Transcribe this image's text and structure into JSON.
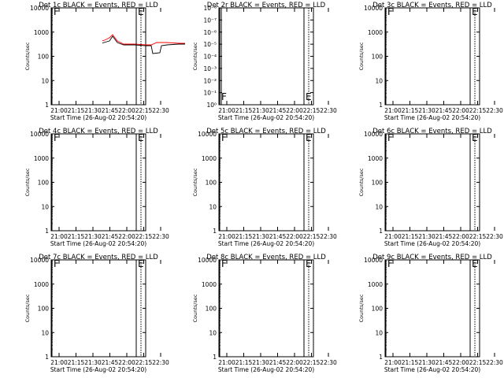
{
  "chart_data": [
    {
      "type": "line",
      "title": "Det 1c BLACK = Events, RED = LLD",
      "xlabel": "Start Time (26-Aug-02 20:54:20)",
      "ylabel": "Counts/sec",
      "yscale": "log",
      "ylim": [
        1,
        10000
      ],
      "xticks": [
        "21:00",
        "21:15",
        "21:30",
        "21:45",
        "22:00",
        "22:15",
        "22:30"
      ],
      "markers": [
        {
          "time": "21:05",
          "label": "F",
          "style": "solid"
        },
        {
          "time": "22:12",
          "label": "E",
          "style": "solid"
        },
        {
          "time": "22:15",
          "label": "",
          "style": "dotted"
        }
      ],
      "yticks": [
        "1",
        "10",
        "100",
        "1000",
        "10000"
      ],
      "variant": "a",
      "series": [
        {
          "name": "Events",
          "color": "#000000"
        },
        {
          "name": "LLD",
          "color": "#ff0000"
        }
      ]
    },
    {
      "type": "line",
      "title": "Det 2r BLACK = Events, RED = LLD",
      "xlabel": "Start Time (26-Aug-02 20:54:20)",
      "ylabel": "Counts/sec",
      "yscale": "log",
      "ylim": [
        1,
        1e-08
      ],
      "xticks": [
        "21:00",
        "21:15",
        "21:30",
        "21:45",
        "22:00",
        "22:15",
        "22:30"
      ],
      "markers": [
        {
          "time": "21:05",
          "label": "F",
          "style": "solid"
        },
        {
          "time": "22:12",
          "label": "E",
          "style": "solid"
        },
        {
          "time": "22:15",
          "label": "",
          "style": "dotted"
        }
      ],
      "yticks": [
        "10⁰",
        "10⁻¹",
        "10⁻²",
        "10⁻³",
        "10⁻⁴",
        "10⁻⁵",
        "10⁻⁶",
        "10⁻⁷",
        "10⁻⁸"
      ],
      "variant": "empty",
      "series": []
    },
    {
      "type": "line",
      "title": "Det 3c BLACK = Events, RED = LLD",
      "xlabel": "Start Time (26-Aug-02 20:54:20)",
      "ylabel": "Counts/sec",
      "yscale": "log",
      "ylim": [
        1,
        10000
      ],
      "xticks": [
        "21:00",
        "21:15",
        "21:30",
        "21:45",
        "22:00",
        "22:15",
        "22:30"
      ],
      "markers": [
        {
          "time": "21:05",
          "label": "F",
          "style": "solid"
        },
        {
          "time": "22:12",
          "label": "E",
          "style": "solid"
        },
        {
          "time": "22:15",
          "label": "",
          "style": "dotted"
        }
      ],
      "yticks": [
        "1",
        "10",
        "100",
        "1000",
        "10000"
      ],
      "variant": "a",
      "series": [
        {
          "name": "Events",
          "color": "#000000"
        },
        {
          "name": "LLD",
          "color": "#ff0000"
        }
      ]
    },
    {
      "type": "line",
      "title": "Det 4c BLACK = Events, RED = LLD",
      "xlabel": "Start Time (26-Aug-02 20:54:20)",
      "ylabel": "Counts/sec",
      "yscale": "log",
      "ylim": [
        1,
        10000
      ],
      "xticks": [
        "21:00",
        "21:15",
        "21:30",
        "21:45",
        "22:00",
        "22:15",
        "22:30"
      ],
      "markers": [
        {
          "time": "21:05",
          "label": "F",
          "style": "solid"
        },
        {
          "time": "22:12",
          "label": "E",
          "style": "solid"
        },
        {
          "time": "22:15",
          "label": "",
          "style": "dotted"
        }
      ],
      "yticks": [
        "1",
        "10",
        "100",
        "1000",
        "10000"
      ],
      "variant": "a",
      "series": [
        {
          "name": "Events",
          "color": "#000000"
        },
        {
          "name": "LLD",
          "color": "#ff0000"
        }
      ]
    },
    {
      "type": "line",
      "title": "Det 5c BLACK = Events, RED = LLD",
      "xlabel": "Start Time (26-Aug-02 20:54:20)",
      "ylabel": "Counts/sec",
      "yscale": "log",
      "ylim": [
        1,
        10000
      ],
      "xticks": [
        "21:00",
        "21:15",
        "21:30",
        "21:45",
        "22:00",
        "22:15",
        "22:30"
      ],
      "markers": [
        {
          "time": "21:05",
          "label": "F",
          "style": "solid"
        },
        {
          "time": "22:12",
          "label": "E",
          "style": "solid"
        },
        {
          "time": "22:15",
          "label": "",
          "style": "dotted"
        }
      ],
      "yticks": [
        "1",
        "10",
        "100",
        "1000",
        "10000"
      ],
      "variant": "b",
      "series": [
        {
          "name": "Events",
          "color": "#000000"
        },
        {
          "name": "LLD",
          "color": "#ff0000"
        }
      ]
    },
    {
      "type": "line",
      "title": "Det 6c BLACK = Events, RED = LLD",
      "xlabel": "Start Time (26-Aug-02 20:54:20)",
      "ylabel": "Counts/sec",
      "yscale": "log",
      "ylim": [
        1,
        10000
      ],
      "xticks": [
        "21:00",
        "21:15",
        "21:30",
        "21:45",
        "22:00",
        "22:15",
        "22:30"
      ],
      "markers": [
        {
          "time": "21:05",
          "label": "F",
          "style": "solid"
        },
        {
          "time": "22:12",
          "label": "E",
          "style": "solid"
        },
        {
          "time": "22:15",
          "label": "",
          "style": "dotted"
        }
      ],
      "yticks": [
        "1",
        "10",
        "100",
        "1000",
        "10000"
      ],
      "variant": "a",
      "series": [
        {
          "name": "Events",
          "color": "#000000"
        },
        {
          "name": "LLD",
          "color": "#ff0000"
        }
      ]
    },
    {
      "type": "line",
      "title": "Det 7c BLACK = Events, RED = LLD",
      "xlabel": "Start Time (26-Aug-02 20:54:20)",
      "ylabel": "Counts/sec",
      "yscale": "log",
      "ylim": [
        1,
        10000
      ],
      "xticks": [
        "21:00",
        "21:15",
        "21:30",
        "21:45",
        "22:00",
        "22:15",
        "22:30"
      ],
      "markers": [
        {
          "time": "21:05",
          "label": "F",
          "style": "solid"
        },
        {
          "time": "22:12",
          "label": "E",
          "style": "solid"
        },
        {
          "time": "22:15",
          "label": "",
          "style": "dotted"
        }
      ],
      "yticks": [
        "1",
        "10",
        "100",
        "1000",
        "10000"
      ],
      "variant": "c",
      "series": [
        {
          "name": "Events",
          "color": "#000000"
        },
        {
          "name": "LLD",
          "color": "#ff0000"
        }
      ]
    },
    {
      "type": "line",
      "title": "Det 8c BLACK = Events, RED = LLD",
      "xlabel": "Start Time (26-Aug-02 20:54:20)",
      "ylabel": "Counts/sec",
      "yscale": "log",
      "ylim": [
        1,
        10000
      ],
      "xticks": [
        "21:00",
        "21:15",
        "21:30",
        "21:45",
        "22:00",
        "22:15",
        "22:30"
      ],
      "markers": [
        {
          "time": "21:05",
          "label": "F",
          "style": "solid"
        },
        {
          "time": "22:12",
          "label": "E",
          "style": "solid"
        },
        {
          "time": "22:15",
          "label": "",
          "style": "dotted"
        }
      ],
      "yticks": [
        "1",
        "10",
        "100",
        "1000",
        "10000"
      ],
      "variant": "b",
      "series": [
        {
          "name": "Events",
          "color": "#000000"
        },
        {
          "name": "LLD",
          "color": "#ff0000"
        }
      ]
    },
    {
      "type": "line",
      "title": "Det 9c BLACK = Events, RED = LLD",
      "xlabel": "Start Time (26-Aug-02 20:54:20)",
      "ylabel": "Counts/sec",
      "yscale": "log",
      "ylim": [
        1,
        10000
      ],
      "xticks": [
        "21:00",
        "21:15",
        "21:30",
        "21:45",
        "22:00",
        "22:15",
        "22:30"
      ],
      "markers": [
        {
          "time": "21:05",
          "label": "F",
          "style": "solid"
        },
        {
          "time": "22:12",
          "label": "E",
          "style": "solid"
        },
        {
          "time": "22:15",
          "label": "",
          "style": "dotted"
        }
      ],
      "yticks": [
        "1",
        "10",
        "100",
        "1000",
        "10000"
      ],
      "variant": "b",
      "series": [
        {
          "name": "Events",
          "color": "#000000"
        },
        {
          "name": "LLD",
          "color": "#ff0000"
        }
      ]
    }
  ]
}
